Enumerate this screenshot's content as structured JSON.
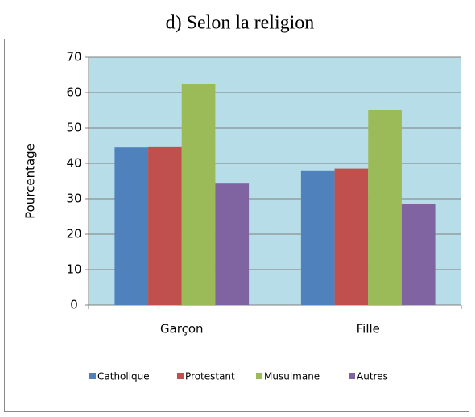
{
  "chart_data": {
    "type": "bar",
    "title": "d) Selon la religion",
    "y_label": "Pourcentage",
    "categories": [
      "Garçon",
      "Fille"
    ],
    "series": [
      {
        "name": "Catholique",
        "color": "#4f81bd",
        "values": [
          44.5,
          38
        ]
      },
      {
        "name": "Protestant",
        "color": "#c0504d",
        "values": [
          44.8,
          38.5
        ]
      },
      {
        "name": "Musulmane",
        "color": "#9bbb59",
        "values": [
          62.5,
          55
        ]
      },
      {
        "name": "Autres",
        "color": "#8064a2",
        "values": [
          34.5,
          28.5
        ]
      }
    ],
    "ylim": [
      0,
      70
    ],
    "yticks": [
      0,
      10,
      20,
      30,
      40,
      50,
      60,
      70
    ],
    "grid": true,
    "legend": "bottom",
    "plot_background": "#b7dde8"
  }
}
